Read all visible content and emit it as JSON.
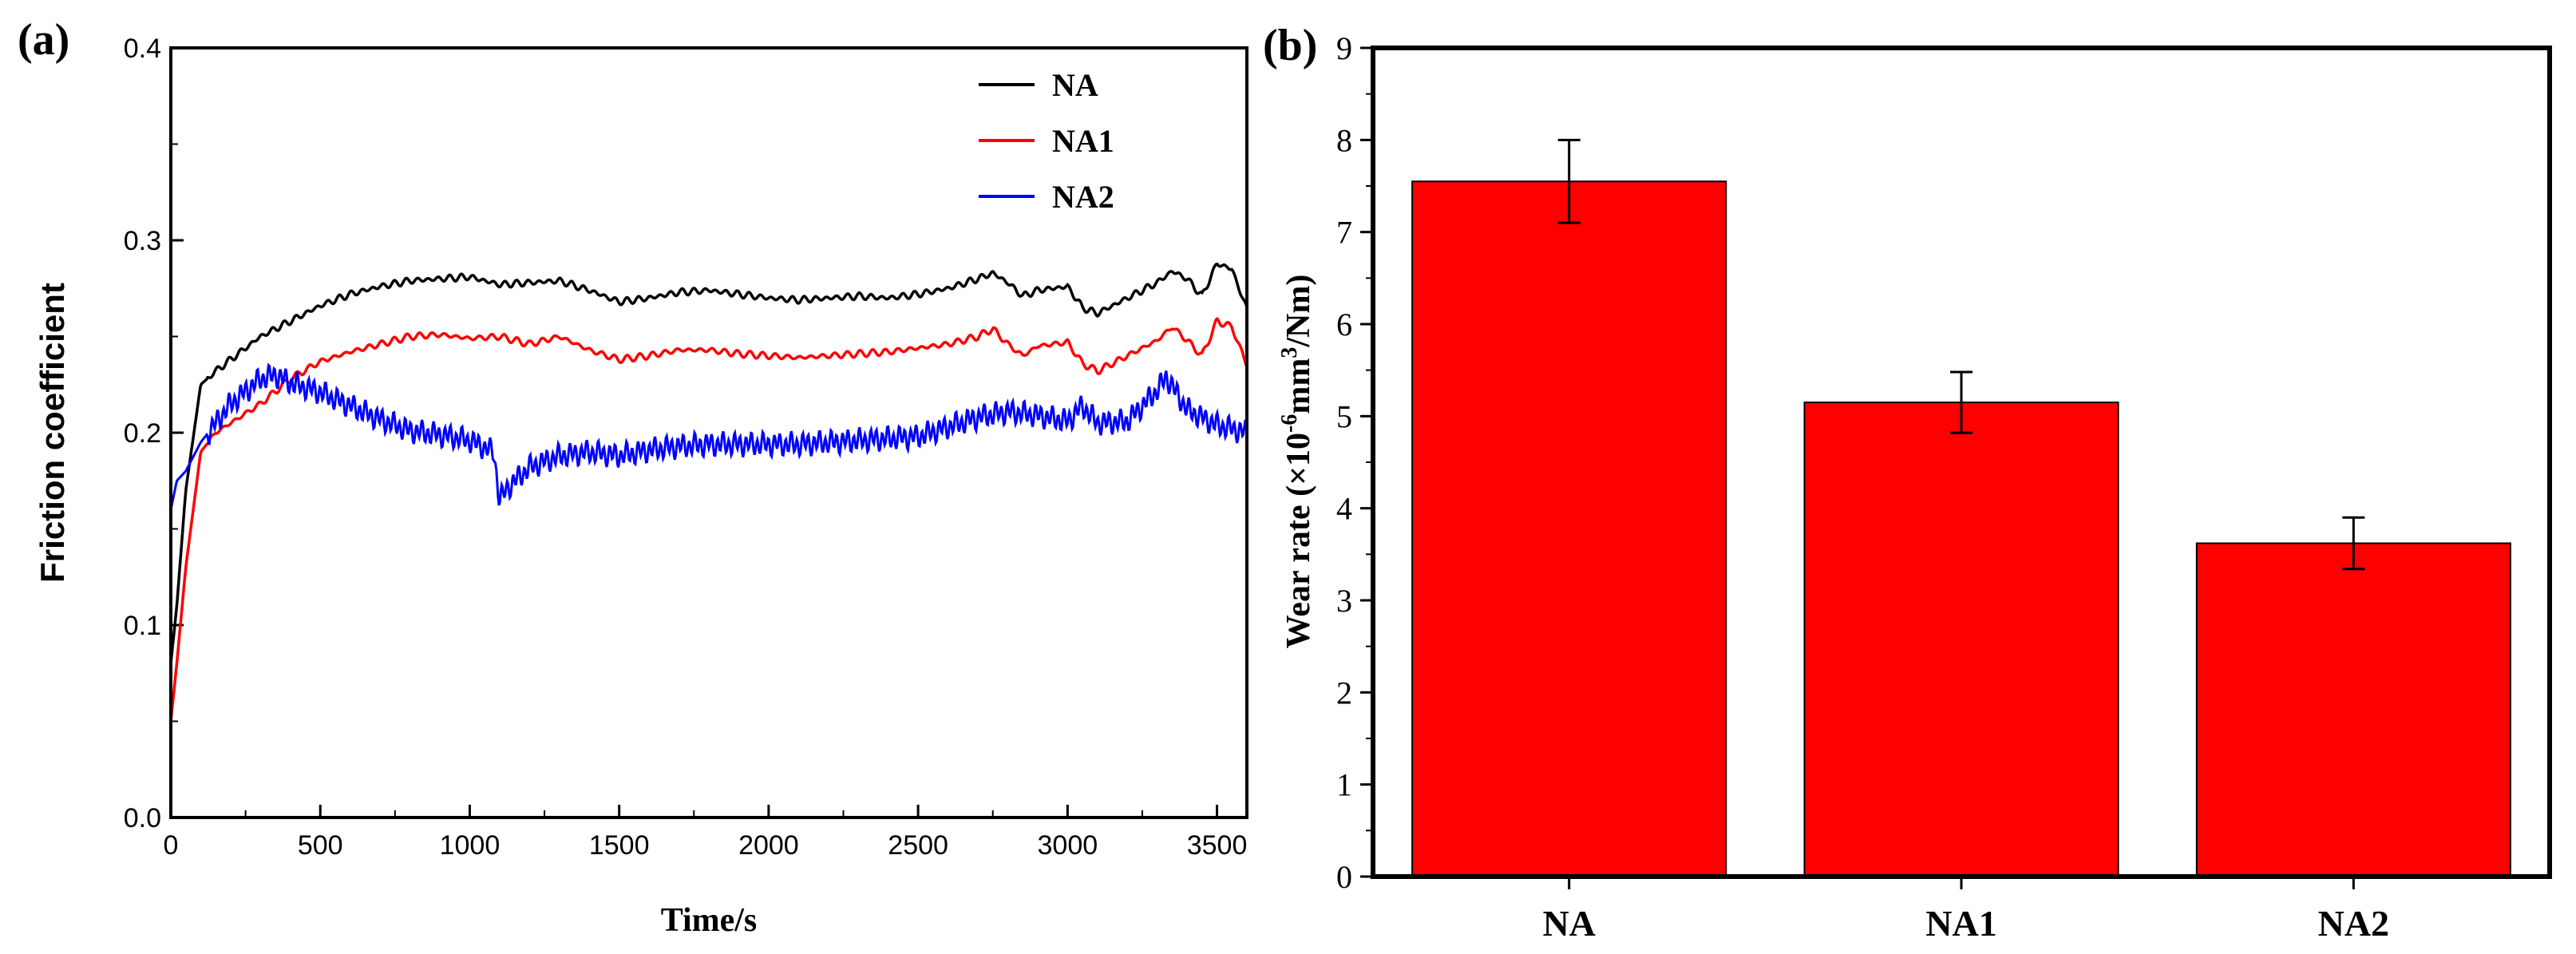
{
  "chart_data": [
    {
      "panel": "(a)",
      "type": "line",
      "title": "",
      "xlabel": "Time/s",
      "ylabel": "Friction coefficient",
      "xlim": [
        0,
        3600
      ],
      "ylim": [
        0.0,
        0.4
      ],
      "xticks": [
        "0",
        "500",
        "1000",
        "1500",
        "2000",
        "2500",
        "3000",
        "3500"
      ],
      "yticks": [
        "0.0",
        "0.1",
        "0.2",
        "0.3",
        "0.4"
      ],
      "legend_position": "top-right",
      "series": [
        {
          "name": "NA",
          "color": "#000000",
          "x": [
            0,
            20,
            50,
            100,
            150,
            200,
            300,
            400,
            500,
            600,
            700,
            800,
            900,
            1000,
            1100,
            1200,
            1300,
            1400,
            1500,
            1600,
            1700,
            1800,
            1900,
            2000,
            2100,
            2200,
            2300,
            2400,
            2500,
            2600,
            2700,
            2750,
            2800,
            2850,
            2900,
            3000,
            3050,
            3100,
            3200,
            3300,
            3350,
            3400,
            3450,
            3500,
            3550,
            3600
          ],
          "y": [
            0.08,
            0.11,
            0.17,
            0.225,
            0.232,
            0.238,
            0.25,
            0.258,
            0.266,
            0.272,
            0.276,
            0.279,
            0.28,
            0.281,
            0.277,
            0.278,
            0.279,
            0.274,
            0.268,
            0.27,
            0.273,
            0.274,
            0.272,
            0.27,
            0.269,
            0.27,
            0.271,
            0.27,
            0.272,
            0.275,
            0.28,
            0.283,
            0.278,
            0.271,
            0.274,
            0.276,
            0.265,
            0.262,
            0.27,
            0.278,
            0.284,
            0.28,
            0.271,
            0.288,
            0.285,
            0.264
          ]
        },
        {
          "name": "NA1",
          "color": "#ff0000",
          "x": [
            0,
            20,
            50,
            100,
            150,
            200,
            300,
            400,
            500,
            600,
            700,
            800,
            900,
            1000,
            1100,
            1200,
            1300,
            1400,
            1500,
            1600,
            1700,
            1800,
            1900,
            2000,
            2100,
            2200,
            2300,
            2400,
            2500,
            2600,
            2700,
            2750,
            2800,
            2850,
            2900,
            3000,
            3050,
            3100,
            3200,
            3300,
            3350,
            3400,
            3450,
            3500,
            3550,
            3600
          ],
          "y": [
            0.05,
            0.08,
            0.13,
            0.19,
            0.2,
            0.205,
            0.215,
            0.228,
            0.237,
            0.242,
            0.246,
            0.25,
            0.251,
            0.249,
            0.25,
            0.246,
            0.25,
            0.243,
            0.238,
            0.24,
            0.243,
            0.243,
            0.241,
            0.24,
            0.239,
            0.24,
            0.241,
            0.242,
            0.244,
            0.246,
            0.25,
            0.254,
            0.246,
            0.24,
            0.245,
            0.247,
            0.236,
            0.232,
            0.24,
            0.248,
            0.255,
            0.248,
            0.24,
            0.258,
            0.255,
            0.235
          ]
        },
        {
          "name": "NA2",
          "color": "#0000ff",
          "x": [
            0,
            20,
            50,
            100,
            150,
            200,
            300,
            350,
            400,
            500,
            600,
            700,
            800,
            900,
            1000,
            1080,
            1100,
            1130,
            1200,
            1300,
            1400,
            1500,
            1600,
            1700,
            1800,
            1900,
            2000,
            2100,
            2200,
            2300,
            2400,
            2500,
            2600,
            2700,
            2800,
            2900,
            3000,
            3050,
            3100,
            3200,
            3300,
            3330,
            3400,
            3500,
            3600
          ],
          "y": [
            0.16,
            0.175,
            0.18,
            0.195,
            0.205,
            0.215,
            0.228,
            0.23,
            0.226,
            0.221,
            0.214,
            0.207,
            0.201,
            0.199,
            0.196,
            0.19,
            0.165,
            0.172,
            0.182,
            0.188,
            0.19,
            0.188,
            0.191,
            0.193,
            0.194,
            0.194,
            0.194,
            0.194,
            0.195,
            0.196,
            0.197,
            0.198,
            0.203,
            0.208,
            0.211,
            0.209,
            0.206,
            0.214,
            0.205,
            0.206,
            0.222,
            0.229,
            0.212,
            0.204,
            0.2
          ]
        }
      ]
    },
    {
      "panel": "(b)",
      "type": "bar",
      "title": "",
      "xlabel": "",
      "ylabel": "Wear rate (×10⁻⁶mm³/Nm)",
      "ylabel_parts": {
        "a": "Wear rate (×10",
        "exp1": "-6",
        "b": "mm",
        "exp2": "3",
        "c": "/Nm)"
      },
      "ylim": [
        0,
        9
      ],
      "yticks": [
        "0",
        "1",
        "2",
        "3",
        "4",
        "5",
        "6",
        "7",
        "8",
        "9"
      ],
      "bar_color": "#ff0000",
      "categories": [
        "NA",
        "NA1",
        "NA2"
      ],
      "values": [
        7.55,
        5.15,
        3.62
      ],
      "errors": [
        0.45,
        0.33,
        0.28
      ]
    }
  ]
}
